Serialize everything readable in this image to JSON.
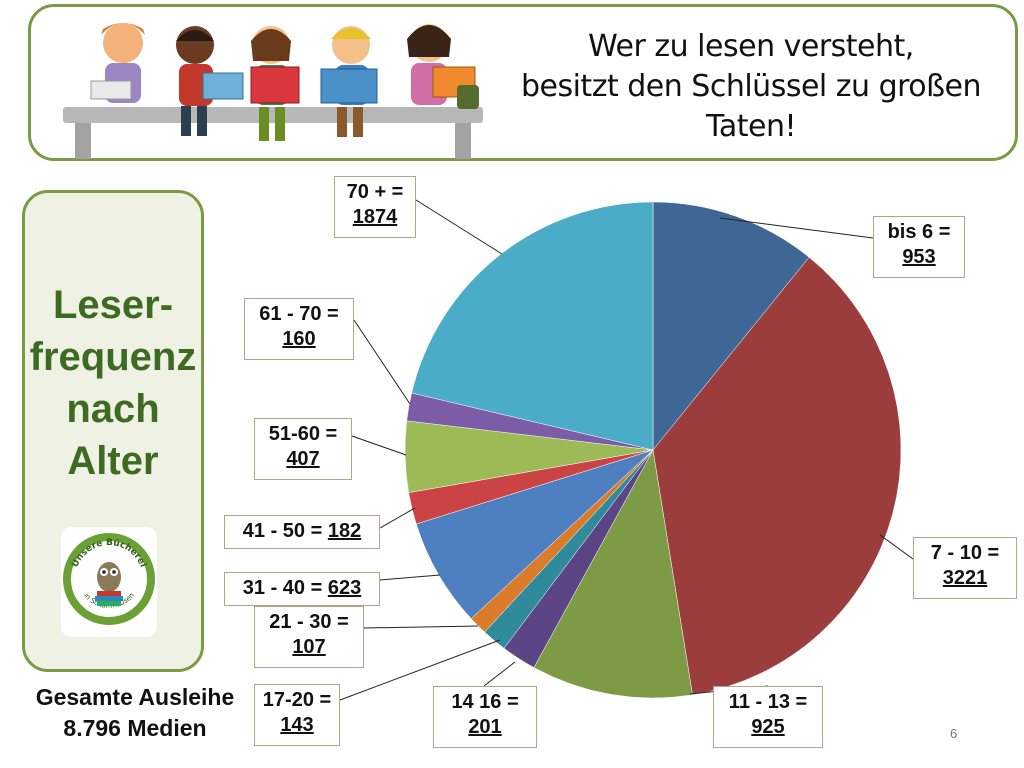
{
  "banner": {
    "quote_line1": "Wer zu lesen versteht,",
    "quote_line2": "besitzt den Schlüssel zu großen",
    "quote_line3": "Taten!"
  },
  "side": {
    "title_line1": "Leser-",
    "title_line2": "frequenz",
    "title_line3": "nach",
    "title_line4": "Alter",
    "logo_text_top": "Unsere Bücherei",
    "logo_text_bottom": "in Scharnhausen"
  },
  "footer": {
    "total_line1": "Gesamte Ausleihe",
    "total_line2": "8.796 Medien",
    "page_number": "6"
  },
  "chart_data": {
    "type": "pie",
    "title": "",
    "slices": [
      {
        "name": "bis 6",
        "value": 953,
        "label_prefix": "bis 6 =",
        "label_value": "953",
        "color": "#3f6795"
      },
      {
        "name": "7 - 10",
        "value": 3221,
        "label_prefix": "7 - 10 =",
        "label_value": "3221",
        "color": "#9b3c3d"
      },
      {
        "name": "11 - 13",
        "value": 925,
        "label_prefix": "11 - 13 =",
        "label_value": "925",
        "color": "#7d9b45"
      },
      {
        "name": "14 16",
        "value": 201,
        "label_prefix": "14  16 =",
        "label_value": "201",
        "color": "#5c4585"
      },
      {
        "name": "17-20",
        "value": 143,
        "label_prefix": "17-20 =",
        "label_value": "143",
        "color": "#2f8a9b"
      },
      {
        "name": "21 - 30",
        "value": 107,
        "label_prefix": "21 - 30 =",
        "label_value": "107",
        "color": "#d97b2a"
      },
      {
        "name": "31 - 40",
        "value": 623,
        "label_prefix": "31 - 40 =",
        "label_value": "623",
        "color": "#4d7fc1"
      },
      {
        "name": "41 - 50",
        "value": 182,
        "label_prefix": "41 - 50 =",
        "label_value": "182",
        "color": "#cc4345"
      },
      {
        "name": "51-60",
        "value": 407,
        "label_prefix": "51-60 =",
        "label_value": "407",
        "color": "#9cbb57"
      },
      {
        "name": "61 - 70",
        "value": 160,
        "label_prefix": "61 - 70 =",
        "label_value": "160",
        "color": "#7c5ca6"
      },
      {
        "name": "70 +",
        "value": 1874,
        "label_prefix": "70 + =",
        "label_value": "1874",
        "color": "#4aacc6"
      }
    ]
  }
}
